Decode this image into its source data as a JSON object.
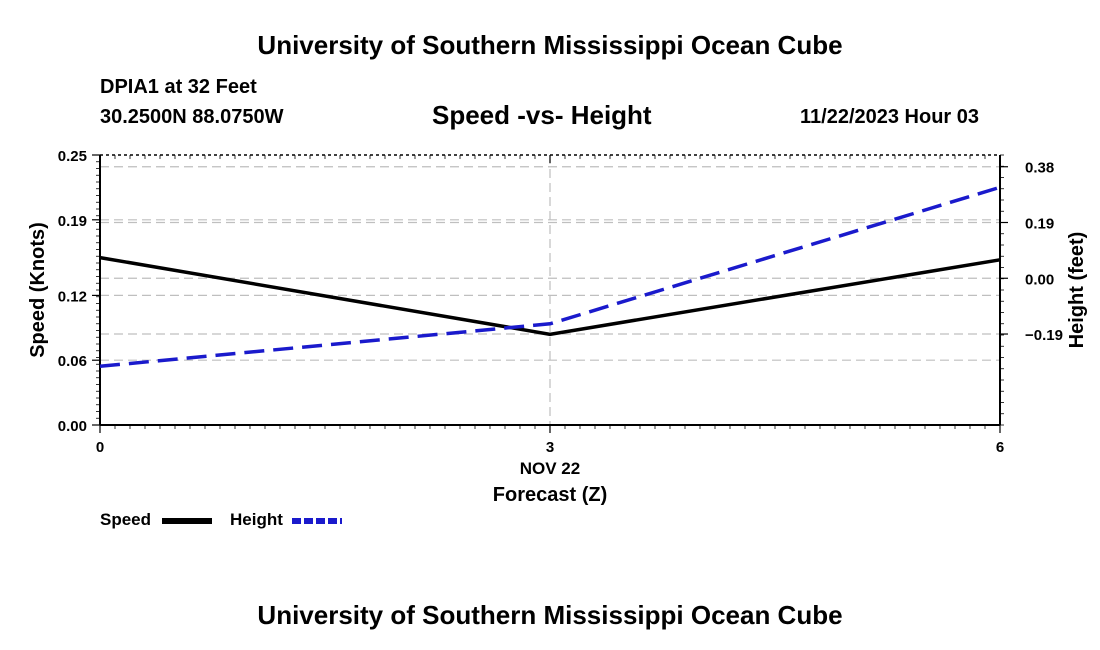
{
  "page": {
    "title_top": "University of Southern Mississippi Ocean Cube",
    "title_bottom": "University of Southern Mississippi Ocean Cube",
    "station": "DPIA1 at 32 Feet",
    "location": "30.2500N  88.0750W",
    "timestamp": "11/22/2023 Hour 03"
  },
  "chart_data": {
    "type": "line",
    "title": "Speed -vs- Height",
    "xlabel": "Forecast (Z)",
    "xlabel_date": "NOV 22",
    "x": [
      0,
      3,
      6
    ],
    "x_ticks": [
      "0",
      "3",
      "6"
    ],
    "xlim": [
      0,
      6
    ],
    "ylabel": "Speed (Knots)",
    "ylim": [
      0,
      0.25
    ],
    "y_ticks": [
      "0.00",
      "0.06",
      "0.12",
      "0.19",
      "0.25"
    ],
    "y2label": "Height (feet)",
    "y2lim": [
      -0.5,
      0.42
    ],
    "y2_ticks": [
      "-0.19",
      "0.00",
      "0.19",
      "0.38"
    ],
    "grid": true,
    "legend": "bottom-left",
    "series": [
      {
        "name": "Speed",
        "axis": "left",
        "color": "#000000",
        "style": "solid",
        "values": [
          0.155,
          0.084,
          0.153
        ]
      },
      {
        "name": "Height",
        "axis": "right",
        "color": "#1a1acc",
        "style": "dashed",
        "values": [
          -0.3,
          -0.155,
          0.31
        ]
      }
    ]
  }
}
